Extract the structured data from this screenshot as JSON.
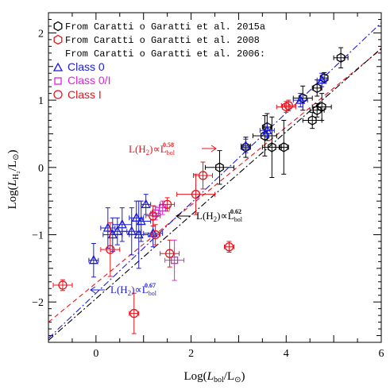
{
  "chart_data": {
    "type": "scatter",
    "xlabel_main": "Log(",
    "xlabel_sym": "L",
    "xlabel_sub": "bol",
    "xlabel_tail": "/L",
    "xlabel_sun": "⊙",
    "xlabel_close": ")",
    "ylabel_main": "Log(",
    "ylabel_sym": "L",
    "ylabel_sub": "H₂",
    "ylabel_tail": "/L",
    "ylabel_sun": "⊙",
    "ylabel_close": ")",
    "xlim": [
      -1,
      6
    ],
    "ylim": [
      -2.6,
      2.3
    ],
    "x_ticks": [
      0,
      2,
      4,
      6
    ],
    "x_tick_labels": [
      "0",
      "2",
      "4",
      "6"
    ],
    "y_ticks": [
      -2,
      -1,
      0,
      1,
      2
    ],
    "y_tick_labels": [
      "−2",
      "−1",
      "0",
      "1",
      "2"
    ],
    "legend": [
      {
        "text": "From Caratti o Garatti et al. 2015a",
        "marker": "hexagon",
        "color": "#000000"
      },
      {
        "text": "From Caratti o Garatti et al. 2008",
        "marker": "hexagon",
        "color": "#e8141c"
      },
      {
        "text": "From Caratti o Garatti et al. 2006:",
        "marker": "none",
        "color": "#000000"
      },
      {
        "text": "Class 0",
        "marker": "triangle",
        "color": "#1a1adc"
      },
      {
        "text": "Class 0/I",
        "marker": "square",
        "color": "#e020e0"
      },
      {
        "text": "Class I",
        "marker": "circle",
        "color": "#e8141c"
      }
    ],
    "fits": [
      {
        "slope": 0.58,
        "intercept": -1.72,
        "color": "#e8141c",
        "dash": "6,4",
        "label_main": "L(H",
        "label_sub": "2",
        "label_mid": ")∝L",
        "label_supsub": "bol",
        "label_exp": "0.58"
      },
      {
        "slope": 0.62,
        "intercept": -1.95,
        "color": "#000000",
        "dash": "8,3,2,3",
        "label_main": "L(H",
        "label_sub": "2",
        "label_mid": ")∝L",
        "label_supsub": "bol",
        "label_exp": "0.62"
      },
      {
        "slope": 0.67,
        "intercept": -1.87,
        "color": "#1a1adc",
        "dash": "8,3,2,3",
        "label_main": "L(H",
        "label_sub": "2",
        "label_mid": ")∝L",
        "label_supsub": "bol",
        "label_exp": "0.67"
      }
    ],
    "series": [
      {
        "name": "From Caratti o Garatti et al. 2015a",
        "marker": "hexagon",
        "color": "#000000",
        "points": [
          {
            "x": 5.15,
            "y": 1.63,
            "ex": 0.15,
            "ey": 0.15
          },
          {
            "x": 4.8,
            "y": 1.33,
            "ex": 0.08,
            "ey": 0.08
          },
          {
            "x": 4.65,
            "y": 1.18,
            "ex": 0.1,
            "ey": 0.12
          },
          {
            "x": 4.35,
            "y": 1.03,
            "ex": 0.2,
            "ey": 0.18
          },
          {
            "x": 4.55,
            "y": 0.7,
            "ex": 0.2,
            "ey": 0.12
          },
          {
            "x": 4.75,
            "y": 0.9,
            "ex": 0.2,
            "ey": 0.2
          },
          {
            "x": 4.65,
            "y": 0.85,
            "ex": 0.15,
            "ey": 0.1
          },
          {
            "x": 3.6,
            "y": 0.6,
            "ex": 0.1,
            "ey": 0.2
          },
          {
            "x": 3.55,
            "y": 0.47,
            "ex": 0.25,
            "ey": 0.3
          },
          {
            "x": 3.7,
            "y": 0.3,
            "ex": 0.2,
            "ey": 0.45
          },
          {
            "x": 3.95,
            "y": 0.3,
            "ex": 0.1,
            "ey": 0.4
          },
          {
            "x": 3.15,
            "y": 0.3,
            "ex": 0.1,
            "ey": 0.15
          },
          {
            "x": 2.6,
            "y": 0.0,
            "ex": 0.3,
            "ey": 0.25
          }
        ]
      },
      {
        "name": "From Caratti o Garatti et al. 2008",
        "marker": "hexagon",
        "color": "#e8141c",
        "points": [
          {
            "x": 4.0,
            "y": 0.9,
            "ex": 0.2,
            "ey": 0.08
          }
        ]
      },
      {
        "name": "Class 0",
        "marker": "triangle",
        "color": "#1a1adc",
        "points": [
          {
            "x": -0.05,
            "y": -1.38,
            "ex": 0.1,
            "ey": 0.25
          },
          {
            "x": 0.25,
            "y": -0.9,
            "ex": 0.15,
            "ey": 0.3
          },
          {
            "x": 0.35,
            "y": -1.0,
            "ex": 0.2,
            "ey": 0.25
          },
          {
            "x": 0.45,
            "y": -0.95,
            "ex": 0.2,
            "ey": 0.2
          },
          {
            "x": 0.55,
            "y": -0.85,
            "ex": 0.2,
            "ey": 0.25
          },
          {
            "x": 0.75,
            "y": -0.95,
            "ex": 0.2,
            "ey": 0.35
          },
          {
            "x": 0.85,
            "y": -0.75,
            "ex": 0.15,
            "ey": 0.25
          },
          {
            "x": 0.9,
            "y": -1.0,
            "ex": 0.2,
            "ey": 0.5
          },
          {
            "x": 0.95,
            "y": -0.8,
            "ex": 0.2,
            "ey": 0.3
          },
          {
            "x": 1.05,
            "y": -0.55,
            "ex": 0.1,
            "ey": 0.15
          },
          {
            "x": 1.2,
            "y": -0.98,
            "ex": 0.2,
            "ey": 0.2
          },
          {
            "x": 3.6,
            "y": 0.55,
            "ex": 0.15,
            "ey": 0.1
          },
          {
            "x": 3.15,
            "y": 0.32,
            "ex": 0.1,
            "ey": 0.1
          },
          {
            "x": 4.3,
            "y": 1.0,
            "ex": 0.15,
            "ey": 0.1
          },
          {
            "x": 4.75,
            "y": 1.3,
            "ex": 0.1,
            "ey": 0.1
          }
        ]
      },
      {
        "name": "Class 0/I",
        "marker": "square",
        "color": "#e020e0",
        "points": [
          {
            "x": 1.4,
            "y": -0.6,
            "ex": 0.15,
            "ey": 0.1
          },
          {
            "x": 1.65,
            "y": -1.38,
            "ex": 0.2,
            "ey": 0.3
          },
          {
            "x": 1.25,
            "y": -0.68,
            "ex": 0.1,
            "ey": 0.1
          }
        ]
      },
      {
        "name": "Class I",
        "marker": "circle",
        "color": "#e8141c",
        "points": [
          {
            "x": -0.7,
            "y": -1.75,
            "ex": 0.2,
            "ey": 0.08
          },
          {
            "x": 0.3,
            "y": -1.22,
            "ex": 0.2,
            "ey": 0.4
          },
          {
            "x": 0.8,
            "y": -2.17,
            "ex": 0.1,
            "ey": 0.3
          },
          {
            "x": 1.2,
            "y": -0.72,
            "ex": 0.15,
            "ey": 0.15
          },
          {
            "x": 1.25,
            "y": -1.0,
            "ex": 0.1,
            "ey": 0.15
          },
          {
            "x": 1.5,
            "y": -0.55,
            "ex": 0.15,
            "ey": 0.1
          },
          {
            "x": 1.55,
            "y": -1.28,
            "ex": 0.2,
            "ey": 0.2
          },
          {
            "x": 2.1,
            "y": -0.4,
            "ex": 0.4,
            "ey": 0.3
          },
          {
            "x": 2.25,
            "y": -0.12,
            "ex": 0.2,
            "ey": 0.2
          },
          {
            "x": 2.8,
            "y": -1.18,
            "ex": 0.1,
            "ey": 0.08
          },
          {
            "x": 4.05,
            "y": 0.92,
            "ex": 0.15,
            "ey": 0.08
          }
        ]
      }
    ]
  }
}
